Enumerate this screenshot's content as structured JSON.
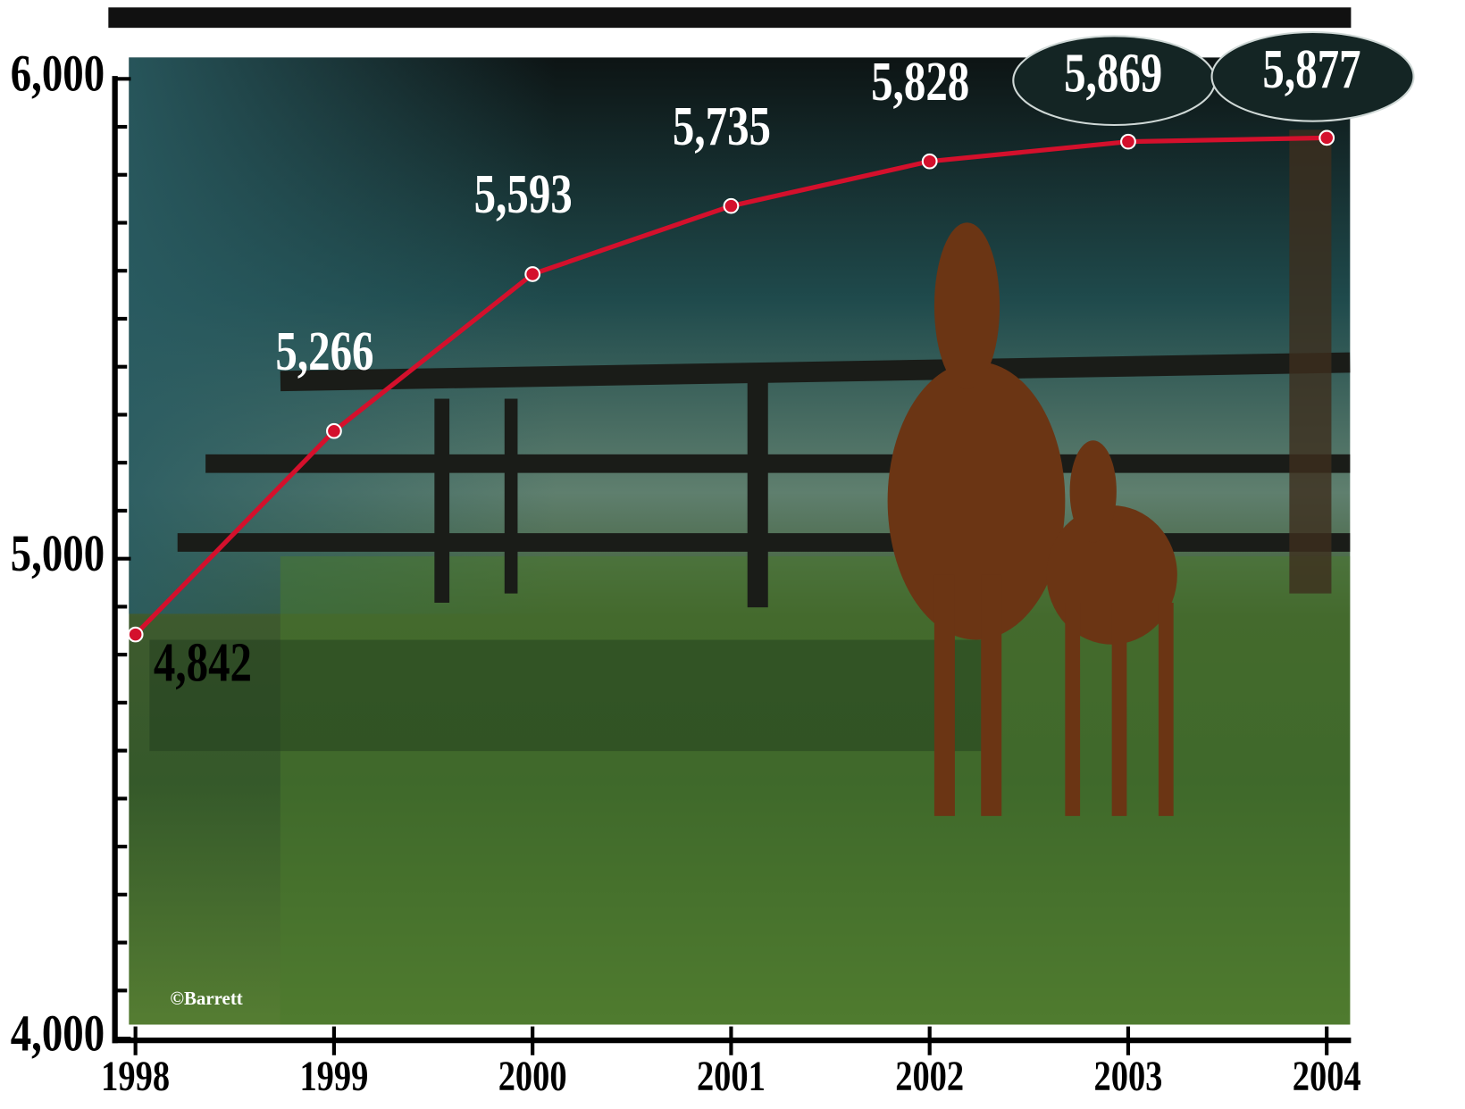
{
  "chart_data": {
    "type": "line",
    "x": [
      1998,
      1999,
      2000,
      2001,
      2002,
      2003,
      2004
    ],
    "values": [
      4842,
      5266,
      5593,
      5735,
      5828,
      5869,
      5877
    ],
    "value_labels": [
      "4,842",
      "5,266",
      "5,593",
      "5,735",
      "5,828",
      "5,869",
      "5,877"
    ],
    "color": "#d4102c",
    "xlim": [
      1998,
      2004
    ],
    "xticks": [
      1998,
      1999,
      2000,
      2001,
      2002,
      2003,
      2004
    ],
    "ylim": [
      4000,
      6000
    ],
    "yticks": [
      {
        "value": 4000,
        "label": "4,000"
      },
      {
        "value": 4100,
        "label": null
      },
      {
        "value": 4200,
        "label": null
      },
      {
        "value": 4300,
        "label": null
      },
      {
        "value": 4400,
        "label": null
      },
      {
        "value": 4500,
        "label": null
      },
      {
        "value": 4600,
        "label": null
      },
      {
        "value": 4700,
        "label": null
      },
      {
        "value": 4800,
        "label": null
      },
      {
        "value": 4900,
        "label": null
      },
      {
        "value": 5000,
        "label": "5,000"
      },
      {
        "value": 5100,
        "label": null
      },
      {
        "value": 5200,
        "label": null
      },
      {
        "value": 5300,
        "label": null
      },
      {
        "value": 5400,
        "label": null
      },
      {
        "value": 5500,
        "label": null
      },
      {
        "value": 5600,
        "label": null
      },
      {
        "value": 5700,
        "label": null
      },
      {
        "value": 5800,
        "label": null
      },
      {
        "value": 5900,
        "label": null
      },
      {
        "value": 6000,
        "label": "6,000"
      }
    ],
    "highlight_x": [
      2003,
      2004
    ],
    "credit": "©Barrett"
  }
}
